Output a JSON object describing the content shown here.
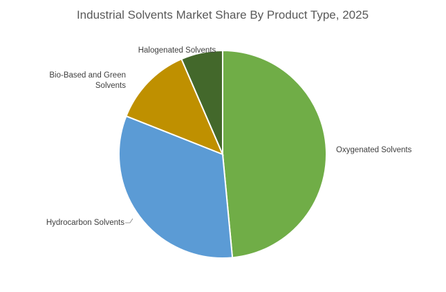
{
  "chart_data": {
    "type": "pie",
    "title": "Industrial Solvents Market Share By Product Type, 2025",
    "slices": [
      {
        "label": "Oxygenated Solvents",
        "value": 48.5,
        "color": "#70ad47"
      },
      {
        "label": "Hydrocarbon Solvents",
        "value": 32.5,
        "color": "#5b9bd5"
      },
      {
        "label_lines": [
          "Bio-Based and Green",
          "Solvents"
        ],
        "value": 12.5,
        "color": "#bf9000"
      },
      {
        "label": "Halogenated Solvents",
        "value": 6.5,
        "color": "#43682b"
      }
    ],
    "legend": "none",
    "data_labels": "category names outside slices"
  }
}
